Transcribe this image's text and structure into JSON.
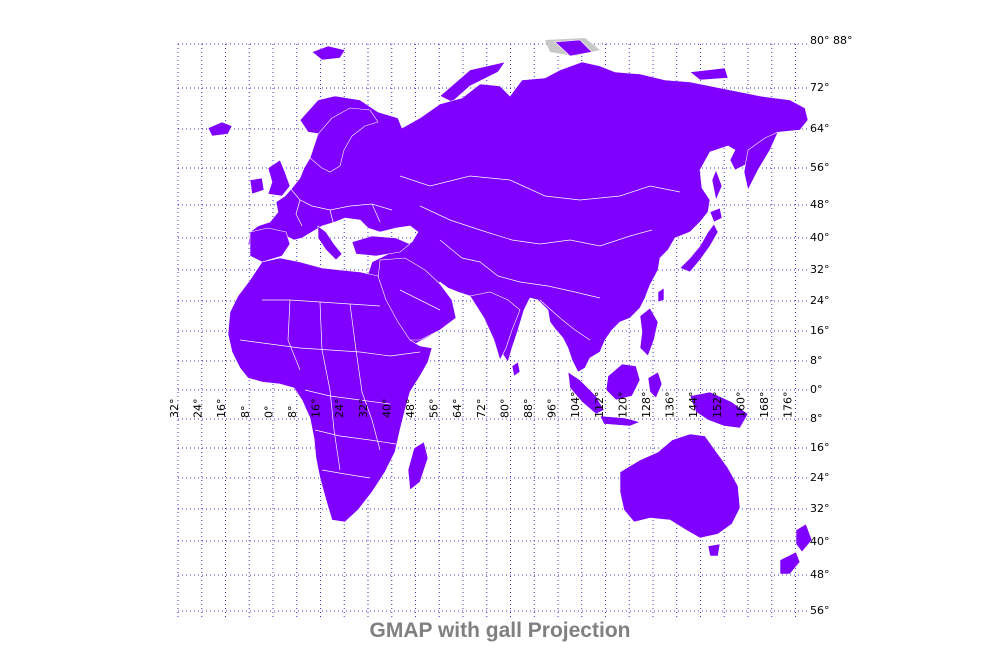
{
  "title": "GMAP with gall Projection",
  "colors": {
    "land": "#7f00ff",
    "grid": "#3333cc",
    "borders": "#ffffff",
    "title": "#808080"
  },
  "map": {
    "projection": "gall",
    "lon_range": [
      -32,
      180
    ],
    "lat_range": [
      -56,
      88
    ],
    "grid": true,
    "lat_labels": [
      "80°",
      "88°",
      "72°",
      "64°",
      "56°",
      "48°",
      "40°",
      "32°",
      "24°",
      "16°",
      "8°",
      "0°",
      "8°",
      "16°",
      "24°",
      "32°",
      "40°",
      "48°",
      "56°"
    ],
    "lon_labels": [
      "32°",
      "24°",
      "16°",
      "8°",
      "0°",
      "8°",
      "16°",
      "24°",
      "32°",
      "40°",
      "48°",
      "56°",
      "64°",
      "72°",
      "80°",
      "88°",
      "96°",
      "104°",
      "112°",
      "120°",
      "128°",
      "136°",
      "144°",
      "152°",
      "160°",
      "168°",
      "176°"
    ]
  }
}
